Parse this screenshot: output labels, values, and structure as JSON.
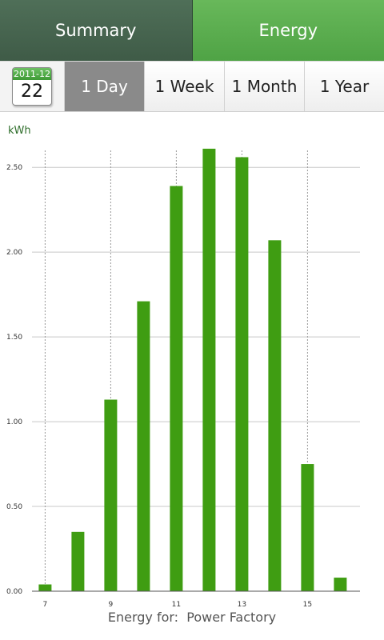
{
  "tabs": {
    "summary": "Summary",
    "energy": "Energy"
  },
  "date": {
    "month": "2011-12",
    "day": "22"
  },
  "ranges": [
    "1 Day",
    "1 Week",
    "1 Month",
    "1 Year"
  ],
  "active_range": "1 Day",
  "colors": {
    "bar": "#3f9d12",
    "active_tab": "#5db050",
    "inactive_tab": "#456650"
  },
  "footer": {
    "label": "Energy for:",
    "site": "Power Factory"
  },
  "chart_data": {
    "type": "bar",
    "ylabel": "kWh",
    "xlabel": "",
    "title": "",
    "ylim": [
      0,
      2.6
    ],
    "yticks": [
      "0.00",
      "0.50",
      "1.00",
      "1.50",
      "2.00",
      "2.50"
    ],
    "x": [
      7,
      8,
      9,
      10,
      11,
      12,
      13,
      14,
      15,
      16
    ],
    "xtick_labels": [
      "7",
      "9",
      "11",
      "13",
      "15"
    ],
    "values": [
      0.04,
      0.35,
      1.13,
      1.71,
      2.39,
      2.61,
      2.56,
      2.07,
      0.75,
      0.08
    ],
    "grid": true
  }
}
